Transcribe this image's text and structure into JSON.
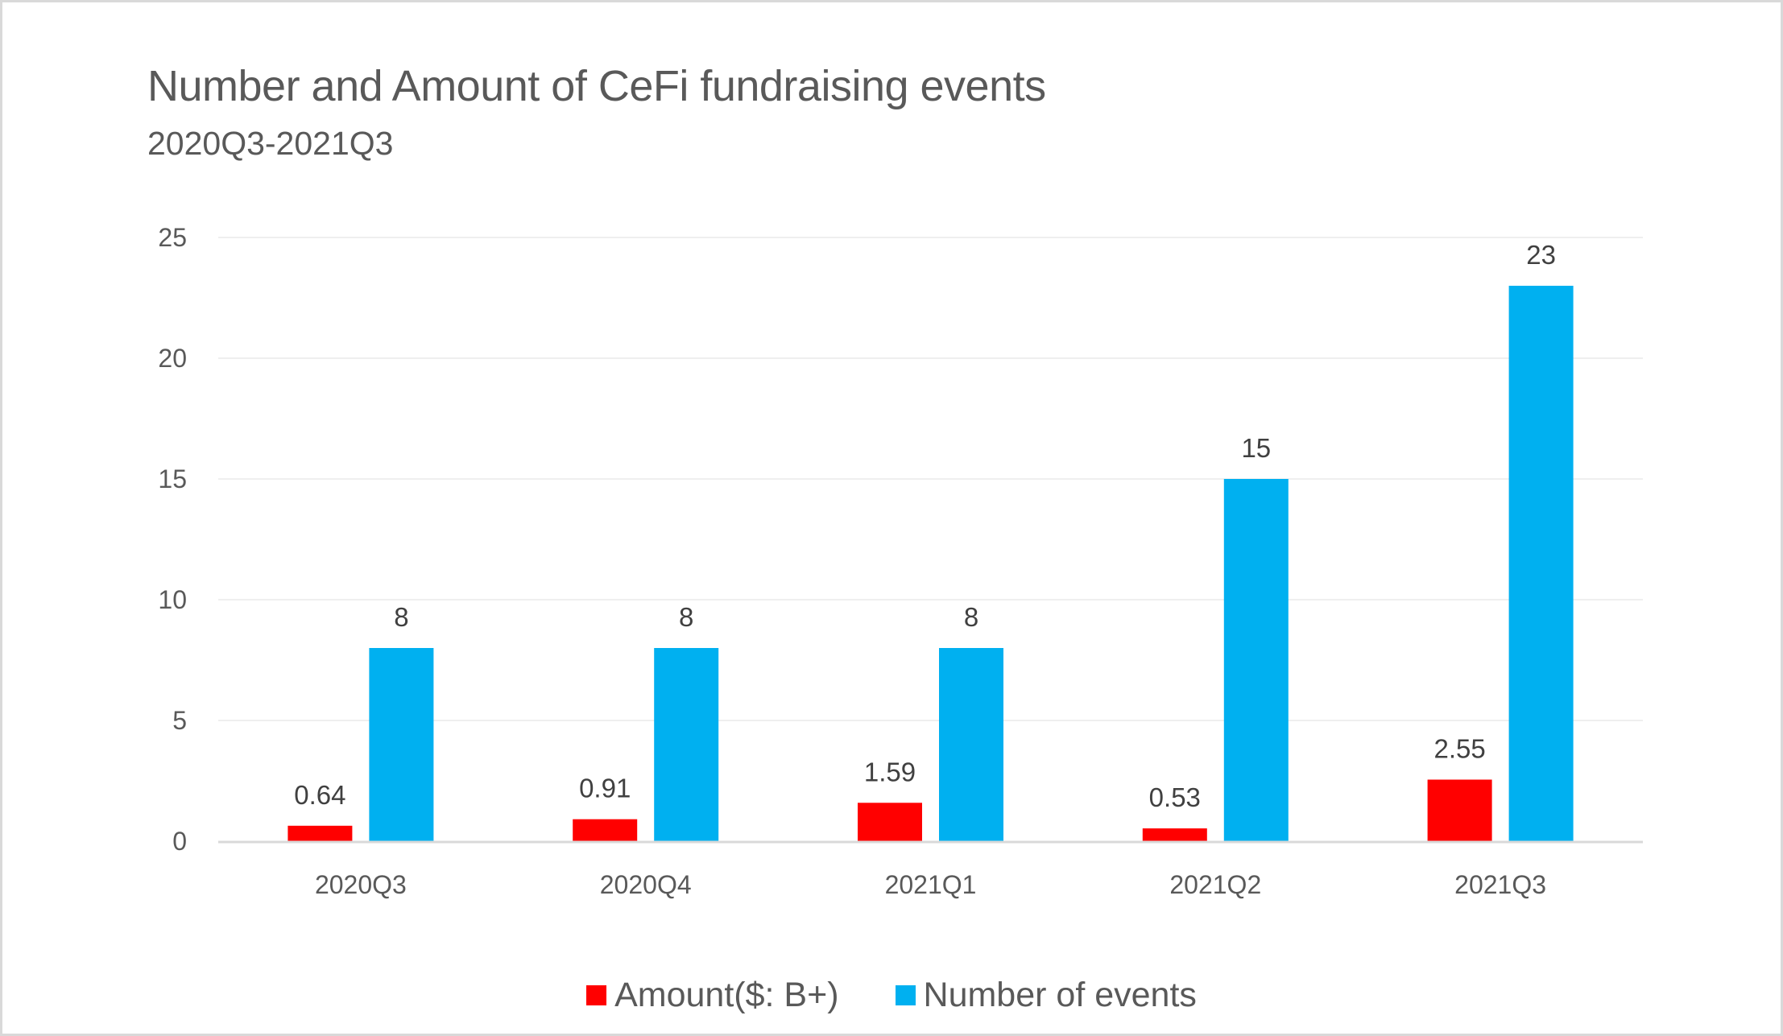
{
  "chart_data": {
    "type": "bar",
    "title": "Number and Amount of CeFi fundraising events",
    "subtitle": "2020Q3-2021Q3",
    "xlabel": "",
    "ylabel": "",
    "categories": [
      "2020Q3",
      "2020Q4",
      "2021Q1",
      "2021Q2",
      "2021Q3"
    ],
    "series": [
      {
        "name": "Amount($: B+)",
        "color": "#ff0000",
        "values": [
          0.64,
          0.91,
          1.59,
          0.53,
          2.55
        ],
        "labels": [
          "0.64",
          "0.91",
          "1.59",
          "0.53",
          "2.55"
        ]
      },
      {
        "name": "Number of events",
        "color": "#00b0f0",
        "values": [
          8,
          8,
          8,
          15,
          23
        ],
        "labels": [
          "8",
          "8",
          "8",
          "15",
          "23"
        ]
      }
    ],
    "ylim": [
      0,
      25
    ],
    "yticks": [
      0,
      5,
      10,
      15,
      20,
      25
    ],
    "ytick_labels": [
      "0",
      "5",
      "10",
      "15",
      "20",
      "25"
    ],
    "grid": true,
    "legend_position": "bottom"
  }
}
